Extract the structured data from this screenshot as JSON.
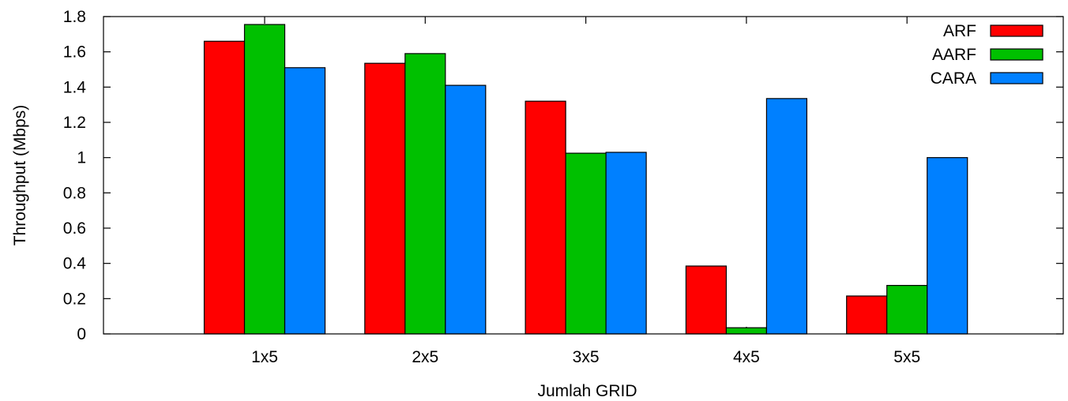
{
  "chart_data": {
    "type": "bar",
    "title": "",
    "xlabel": "Jumlah GRID",
    "ylabel": "Throughput (Mbps)",
    "categories": [
      "1x5",
      "2x5",
      "3x5",
      "4x5",
      "5x5"
    ],
    "series": [
      {
        "name": "ARF",
        "color": "#ff0000",
        "values": [
          1.66,
          1.535,
          1.32,
          0.385,
          0.215
        ]
      },
      {
        "name": "AARF",
        "color": "#00c000",
        "values": [
          1.755,
          1.59,
          1.025,
          0.035,
          0.275
        ]
      },
      {
        "name": "CARA",
        "color": "#0080ff",
        "values": [
          1.51,
          1.41,
          1.03,
          1.335,
          1.0
        ]
      }
    ],
    "ylim": [
      0,
      1.8
    ],
    "yticks": [
      "0",
      "0.2",
      "0.4",
      "0.6",
      "0.8",
      "1",
      "1.2",
      "1.4",
      "1.6",
      "1.8"
    ],
    "grid": false,
    "legend": {
      "position": "top-right"
    }
  }
}
